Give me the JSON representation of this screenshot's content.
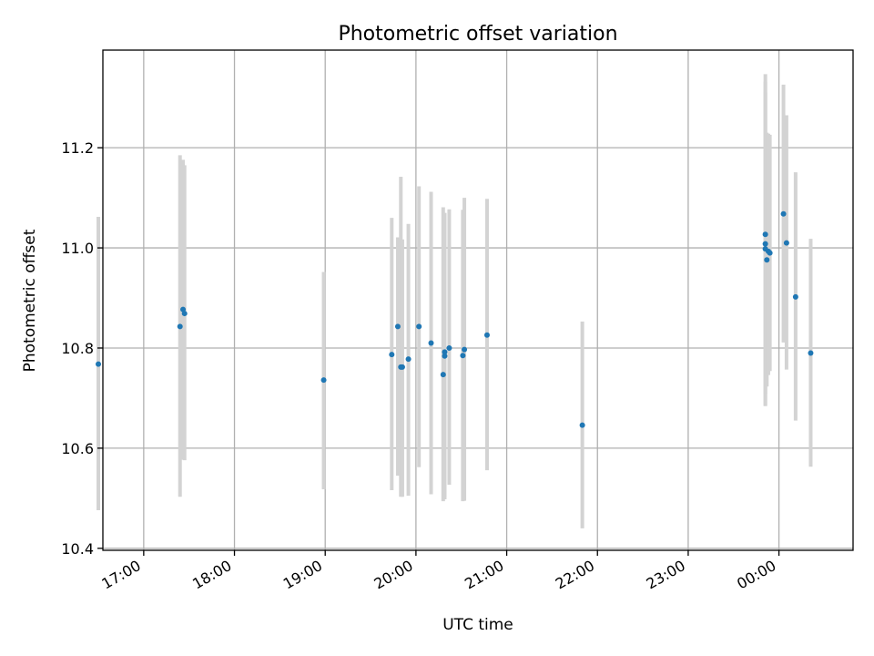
{
  "chart_data": {
    "type": "scatter",
    "title": "Photometric offset variation",
    "xlabel": "UTC time",
    "ylabel": "Photometric offset",
    "xlim": [
      "16:33",
      "00:49"
    ],
    "ylim": [
      10.396,
      11.395
    ],
    "grid": true,
    "x_ticks": [
      "17:00",
      "18:00",
      "19:00",
      "20:00",
      "21:00",
      "22:00",
      "23:00",
      "00:00"
    ],
    "y_ticks": [
      "10.4",
      "10.6",
      "10.8",
      "11.0",
      "11.2"
    ],
    "marker_color": "#1f77b4",
    "errorbar_color": "#d3d3d3",
    "series": [
      {
        "points": [
          {
            "t": "16:30",
            "y": 10.768,
            "lo": 10.476,
            "hi": 11.062
          },
          {
            "t": "17:24",
            "y": 10.843,
            "lo": 10.503,
            "hi": 11.185
          },
          {
            "t": "17:26",
            "y": 10.877,
            "lo": 10.577,
            "hi": 11.176
          },
          {
            "t": "17:27",
            "y": 10.869,
            "lo": 10.576,
            "hi": 11.165
          },
          {
            "t": "18:59",
            "y": 10.736,
            "lo": 10.518,
            "hi": 10.952
          },
          {
            "t": "19:44",
            "y": 10.787,
            "lo": 10.516,
            "hi": 11.06
          },
          {
            "t": "19:48",
            "y": 10.843,
            "lo": 10.545,
            "hi": 11.021
          },
          {
            "t": "19:50",
            "y": 10.762,
            "lo": 10.503,
            "hi": 11.142
          },
          {
            "t": "19:51",
            "y": 10.762,
            "lo": 10.503,
            "hi": 11.017
          },
          {
            "t": "19:55",
            "y": 10.778,
            "lo": 10.505,
            "hi": 11.048
          },
          {
            "t": "20:02",
            "y": 10.843,
            "lo": 10.562,
            "hi": 11.123
          },
          {
            "t": "20:10",
            "y": 10.81,
            "lo": 10.508,
            "hi": 11.112
          },
          {
            "t": "20:18",
            "y": 10.747,
            "lo": 10.494,
            "hi": 11.081
          },
          {
            "t": "20:19",
            "y": 10.784,
            "lo": 10.498,
            "hi": 11.069
          },
          {
            "t": "20:19",
            "y": 10.792,
            "lo": 10.502,
            "hi": 11.07
          },
          {
            "t": "20:22",
            "y": 10.8,
            "lo": 10.527,
            "hi": 11.077
          },
          {
            "t": "20:31",
            "y": 10.785,
            "lo": 10.494,
            "hi": 11.076
          },
          {
            "t": "20:32",
            "y": 10.797,
            "lo": 10.495,
            "hi": 11.1
          },
          {
            "t": "20:47",
            "y": 10.826,
            "lo": 10.556,
            "hi": 11.098
          },
          {
            "t": "21:50",
            "y": 10.646,
            "lo": 10.44,
            "hi": 10.853
          },
          {
            "t": "23:51",
            "y": 11.027,
            "lo": 10.709,
            "hi": 11.347
          },
          {
            "t": "23:51",
            "y": 11.008,
            "lo": 10.684,
            "hi": 11.332
          },
          {
            "t": "23:51",
            "y": 10.998,
            "lo": 10.686,
            "hi": 11.31
          },
          {
            "t": "23:52",
            "y": 10.976,
            "lo": 10.723,
            "hi": 11.23
          },
          {
            "t": "23:53",
            "y": 10.993,
            "lo": 10.746,
            "hi": 11.228
          },
          {
            "t": "23:54",
            "y": 10.99,
            "lo": 10.754,
            "hi": 11.226
          },
          {
            "t": "00:03",
            "y": 11.068,
            "lo": 10.811,
            "hi": 11.326
          },
          {
            "t": "00:05",
            "y": 11.01,
            "lo": 10.757,
            "hi": 11.265
          },
          {
            "t": "00:11",
            "y": 10.902,
            "lo": 10.655,
            "hi": 11.151
          },
          {
            "t": "00:21",
            "y": 10.79,
            "lo": 10.563,
            "hi": 11.018
          }
        ]
      }
    ]
  }
}
